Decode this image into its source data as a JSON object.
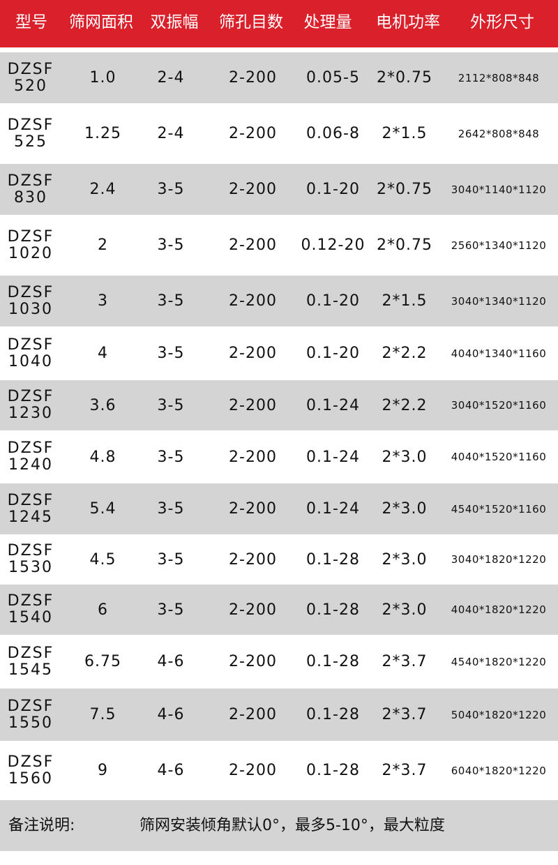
{
  "headers": [
    "型号",
    "筛网面积",
    "双振幅",
    "筛孔目数",
    "处理量",
    "电机功率",
    "外形尺寸"
  ],
  "rows": [
    [
      "DZSF",
      "520",
      "1.0",
      "2-4",
      "2-200",
      "0.05-5",
      "2*0.75",
      "2112*808*848"
    ],
    [
      "DZSF",
      "525",
      "1.25",
      "2-4",
      "2-200",
      "0.06-8",
      "2*1.5",
      "2642*808*848"
    ],
    [
      "DZSF",
      "830",
      "2.4",
      "3-5",
      "2-200",
      "0.1-20",
      "2*0.75",
      "3040*1140*1120"
    ],
    [
      "DZSF",
      "1020",
      "2",
      "3-5",
      "2-200",
      "0.12-20",
      "2*0.75",
      "2560*1340*1120"
    ],
    [
      "DZSF",
      "1030",
      "3",
      "3-5",
      "2-200",
      "0.1-20",
      "2*1.5",
      "3040*1340*1120"
    ],
    [
      "DZSF",
      "1040",
      "4",
      "3-5",
      "2-200",
      "0.1-20",
      "2*2.2",
      "4040*1340*1160"
    ],
    [
      "DZSF",
      "1230",
      "3.6",
      "3-5",
      "2-200",
      "0.1-24",
      "2*2.2",
      "3040*1520*1160"
    ],
    [
      "DZSF",
      "1240",
      "4.8",
      "3-5",
      "2-200",
      "0.1-24",
      "2*3.0",
      "4040*1520*1160"
    ],
    [
      "DZSF",
      "1245",
      "5.4",
      "3-5",
      "2-200",
      "0.1-24",
      "2*3.0",
      "4540*1520*1160"
    ],
    [
      "DZSF",
      "1530",
      "4.5",
      "3-5",
      "2-200",
      "0.1-28",
      "2*3.0",
      "3040*1820*1220"
    ],
    [
      "DZSF",
      "1540",
      "6",
      "3-5",
      "2-200",
      "0.1-28",
      "2*3.0",
      "4040*1820*1220"
    ],
    [
      "DZSF",
      "1545",
      "6.75",
      "4-6",
      "2-200",
      "0.1-28",
      "2*3.7",
      "4540*1820*1220"
    ],
    [
      "DZSF",
      "1550",
      "7.5",
      "4-6",
      "2-200",
      "0.1-28",
      "2*3.7",
      "5040*1820*1220"
    ],
    [
      "DZSF",
      "1560",
      "9",
      "4-6",
      "2-200",
      "0.1-28",
      "2*3.7",
      "6040*1820*1220"
    ]
  ],
  "footer": {
    "label": "备注说明:",
    "text": "筛网安装倾角默认0°，最多5-10°，最大粒度"
  },
  "colors": {
    "header": "#d9202b",
    "stripe": "#d4d4d4"
  }
}
